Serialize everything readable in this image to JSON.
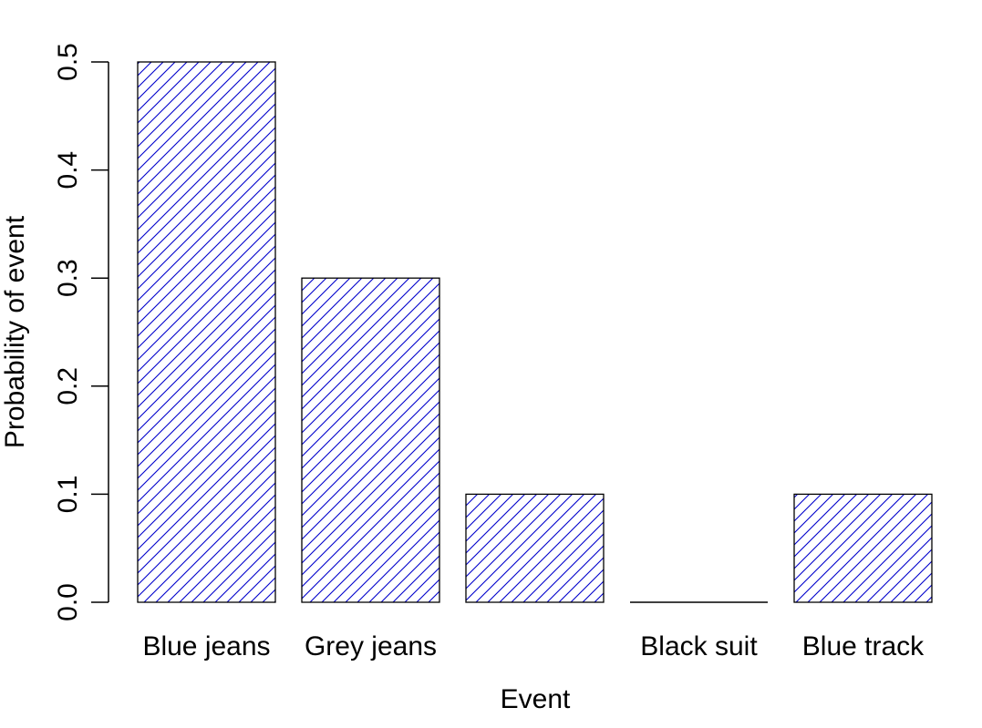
{
  "chart_data": {
    "type": "bar",
    "title": "",
    "xlabel": "Event",
    "ylabel": "Probability of event",
    "categories": [
      "Blue jeans",
      "Grey jeans",
      "",
      "Black suit",
      "Blue track"
    ],
    "values": [
      0.5,
      0.3,
      0.1,
      0.0,
      0.1
    ],
    "ylim": [
      0,
      0.5
    ],
    "yticks": [
      "0.0",
      "0.1",
      "0.2",
      "0.3",
      "0.4",
      "0.5"
    ],
    "grid": false,
    "legend": "none",
    "fill_pattern": "diagonal-hatch",
    "colors": {
      "hatch": "#0000cc",
      "outline": "#000000",
      "axis": "#000000",
      "background": "#ffffff"
    }
  }
}
